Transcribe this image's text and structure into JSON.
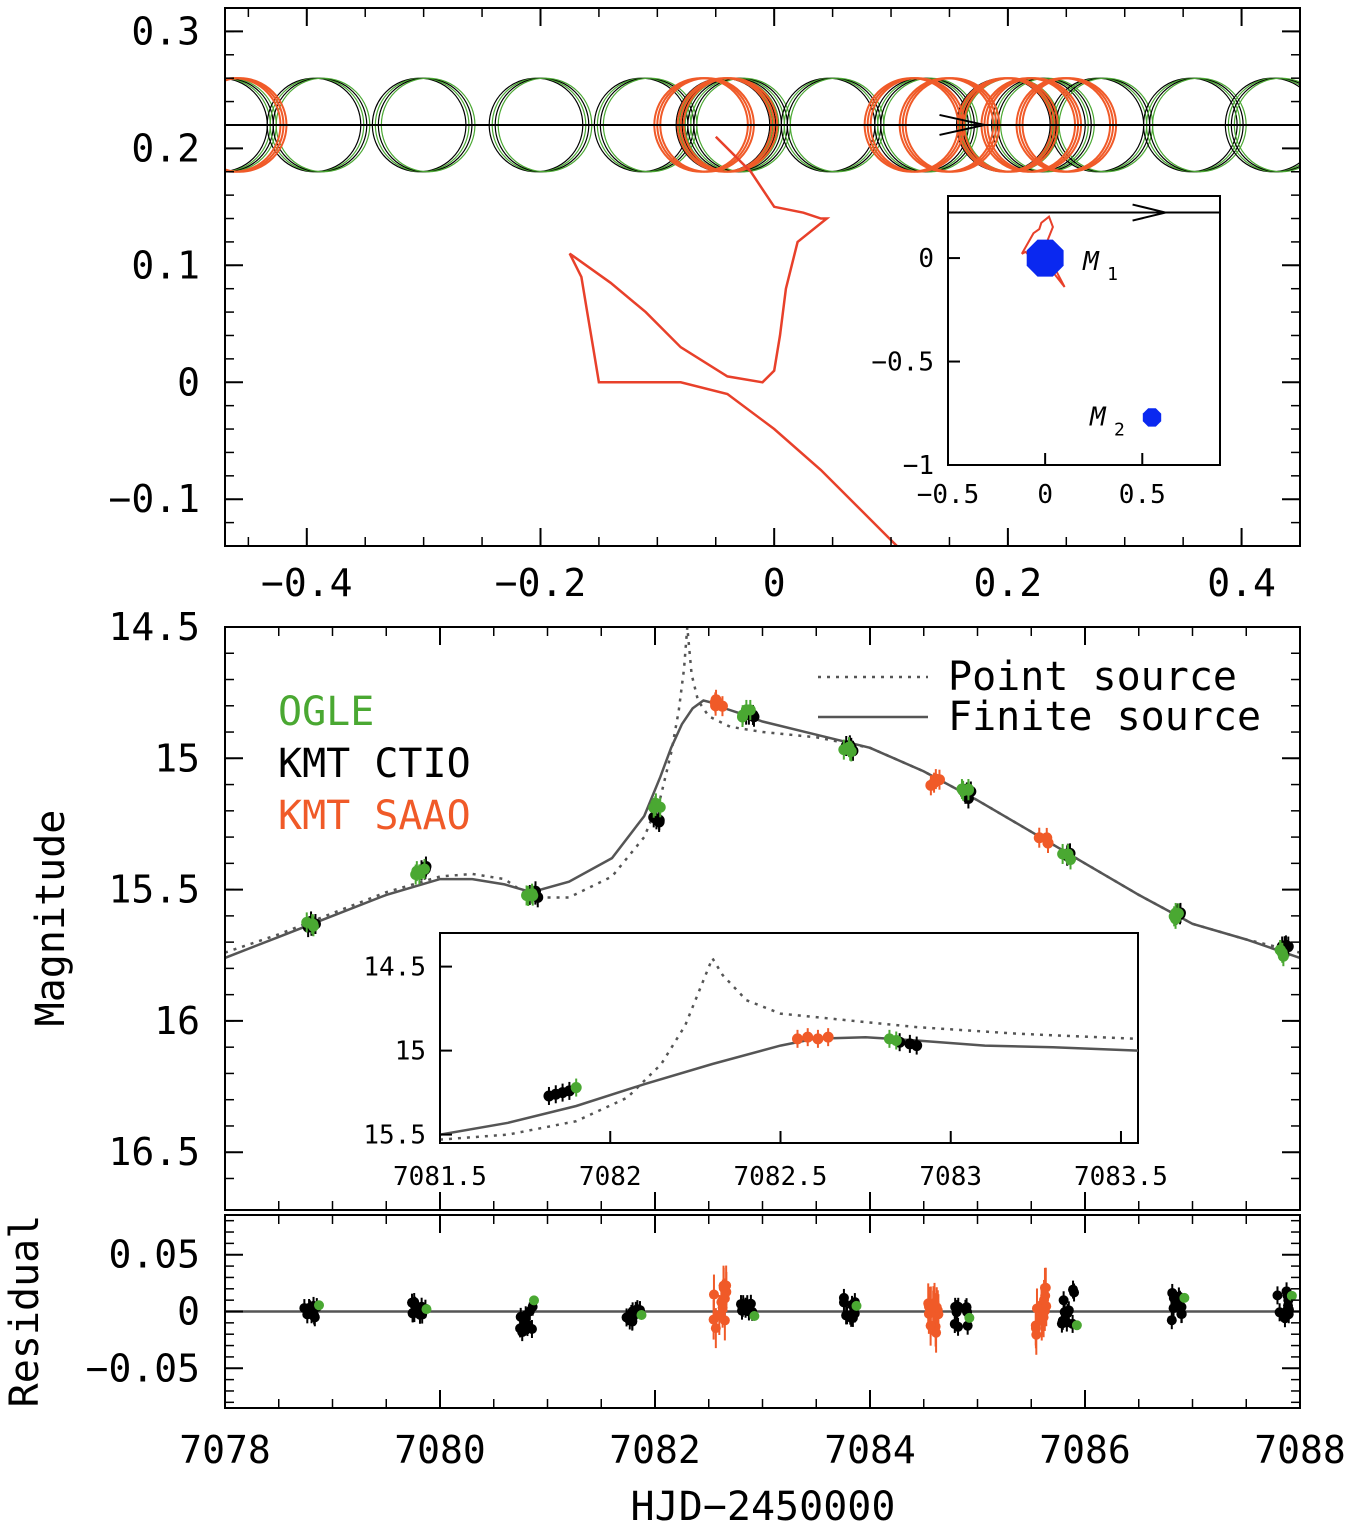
{
  "chart_data": [
    {
      "type": "scatter",
      "panel": "source trajectory / caustic",
      "xlim": [
        -0.47,
        0.45
      ],
      "ylim": [
        -0.14,
        0.32
      ],
      "xticks": [
        -0.4,
        -0.2,
        0,
        0.2,
        0.4
      ],
      "xtick_labels": [
        "−0.4",
        "−0.2",
        "0",
        "0.2",
        "0.4"
      ],
      "yticks": [
        -0.1,
        0,
        0.1,
        0.2,
        0.3
      ],
      "ytick_labels": [
        "−0.1",
        "0",
        "0.1",
        "0.2",
        "0.3"
      ],
      "trajectory_y": 0.22,
      "source_radius": 0.04,
      "source_positions": {
        "green_black": [
          -0.47,
          -0.39,
          -0.3,
          -0.2,
          -0.11,
          -0.04,
          -0.03,
          0.05,
          0.13,
          0.2,
          0.23,
          0.28,
          0.36,
          0.43
        ],
        "orange": [
          -0.46,
          -0.06,
          -0.04,
          0.12,
          0.15,
          0.2,
          0.22,
          0.25
        ]
      },
      "colors": {
        "caustic": "#e8402a",
        "source_orange": "#f05a28",
        "source_green": "#4aa832",
        "source_black": "#000000"
      },
      "inset": {
        "xlim": [
          -0.5,
          0.9
        ],
        "ylim": [
          -1.0,
          0.3
        ],
        "xticks": [
          -0.5,
          0,
          0.5
        ],
        "xtick_labels": [
          "−0.5",
          "0",
          "0.5"
        ],
        "yticks": [
          -1,
          -0.5,
          0
        ],
        "ytick_labels": [
          "−1",
          "−0.5",
          "0"
        ],
        "trajectory_y": 0.22,
        "masses": [
          {
            "label": "M",
            "sub": "1",
            "x": 0.0,
            "y": 0.0,
            "size": "large"
          },
          {
            "label": "M",
            "sub": "2",
            "x": 0.55,
            "y": -0.77,
            "size": "small"
          }
        ],
        "mass_color": "#0a28f0"
      }
    },
    {
      "type": "line",
      "panel": "light curve",
      "xlim": [
        7078,
        7088
      ],
      "ylim": [
        16.72,
        14.5
      ],
      "xlabel": "",
      "ylabel": "Magnitude",
      "yticks": [
        14.5,
        15,
        15.5,
        16,
        16.5
      ],
      "ytick_labels": [
        "14.5",
        "15",
        "15.5",
        "16",
        "16.5"
      ],
      "series": [
        {
          "name": "Point source",
          "style": "dotted",
          "color": "#555555",
          "x": [
            7078.0,
            7078.5,
            7079.0,
            7079.5,
            7080.0,
            7080.3,
            7080.6,
            7080.85,
            7081.2,
            7081.6,
            7081.9,
            7082.05,
            7082.15,
            7082.22,
            7082.27,
            7082.3,
            7082.34,
            7082.4,
            7082.5,
            7082.7,
            7083.0,
            7083.5,
            7084.0,
            7084.5,
            7085.0,
            7085.5,
            7086.0,
            7086.5,
            7087.0,
            7087.5,
            7088.0
          ],
          "y": [
            15.74,
            15.67,
            15.59,
            15.51,
            15.45,
            15.44,
            15.46,
            15.53,
            15.53,
            15.45,
            15.3,
            15.15,
            14.98,
            14.82,
            14.66,
            14.5,
            14.68,
            14.78,
            14.84,
            14.88,
            14.9,
            14.92,
            14.96,
            15.05,
            15.16,
            15.28,
            15.4,
            15.52,
            15.63,
            15.69,
            15.74
          ]
        },
        {
          "name": "Finite source",
          "style": "solid",
          "color": "#555555",
          "x": [
            7078.0,
            7078.5,
            7079.0,
            7079.5,
            7080.0,
            7080.3,
            7080.6,
            7080.85,
            7081.2,
            7081.6,
            7081.9,
            7082.05,
            7082.15,
            7082.25,
            7082.35,
            7082.45,
            7082.55,
            7082.65,
            7082.8,
            7083.0,
            7083.5,
            7084.0,
            7084.5,
            7085.0,
            7085.5,
            7086.0,
            7086.5,
            7087.0,
            7087.5,
            7088.0
          ],
          "y": [
            15.76,
            15.68,
            15.6,
            15.52,
            15.46,
            15.46,
            15.48,
            15.51,
            15.47,
            15.38,
            15.22,
            15.07,
            14.96,
            14.87,
            14.81,
            14.78,
            14.79,
            14.81,
            14.83,
            14.86,
            14.91,
            14.96,
            15.05,
            15.16,
            15.28,
            15.4,
            15.52,
            15.63,
            15.69,
            15.76
          ]
        }
      ],
      "data": {
        "OGLE": {
          "color": "#4aa832",
          "x": [
            7078.8,
            7079.82,
            7080.85,
            7082.03,
            7082.85,
            7083.78,
            7084.88,
            7085.82,
            7086.83,
            7087.82
          ],
          "y": [
            15.64,
            15.43,
            15.51,
            15.18,
            14.83,
            14.96,
            15.12,
            15.37,
            15.6,
            15.74
          ]
        },
        "KMT CTIO": {
          "color": "#000000",
          "x": [
            7078.82,
            7079.84,
            7080.87,
            7082.0,
            7082.88,
            7083.82,
            7084.9,
            7085.85,
            7086.85,
            7087.85
          ],
          "y": [
            15.63,
            15.42,
            15.52,
            15.23,
            14.84,
            14.96,
            15.14,
            15.37,
            15.59,
            15.72
          ]
        },
        "KMT SAAO": {
          "color": "#f05a28",
          "x": [
            7082.6,
            7084.6,
            7085.62
          ],
          "y": [
            14.79,
            15.09,
            15.31
          ]
        }
      },
      "legend_labels": [
        "OGLE",
        "KMT CTIO",
        "KMT SAAO"
      ],
      "legend_colors": [
        "#4aa832",
        "#000000",
        "#f05a28"
      ],
      "inset": {
        "xlim": [
          7081.5,
          7083.55
        ],
        "ylim": [
          15.55,
          14.3
        ],
        "xticks": [
          7081.5,
          7082,
          7082.5,
          7083,
          7083.5
        ],
        "xtick_labels": [
          "7081.5",
          "7082",
          "7082.5",
          "7083",
          "7083.5"
        ],
        "yticks": [
          14.5,
          15,
          15.5
        ],
        "ytick_labels": [
          "14.5",
          "15",
          "15.5"
        ]
      }
    },
    {
      "type": "scatter",
      "panel": "residual",
      "xlim": [
        7078,
        7088
      ],
      "ylim": [
        -0.085,
        0.085
      ],
      "xlabel": "HJD−2450000",
      "ylabel": "Residual",
      "xticks": [
        7078,
        7080,
        7082,
        7084,
        7086,
        7088
      ],
      "xtick_labels": [
        "7078",
        "7080",
        "7082",
        "7084",
        "7086",
        "7088"
      ],
      "yticks": [
        -0.05,
        0,
        0.05
      ],
      "ytick_labels": [
        "−0.05",
        "0",
        "0.05"
      ],
      "groups": [
        {
          "x": 7078.8,
          "color": "#000000",
          "center": 0.0,
          "spread": 0.012
        },
        {
          "x": 7079.8,
          "color": "#000000",
          "center": 0.003,
          "spread": 0.012
        },
        {
          "x": 7080.8,
          "color": "#000000",
          "center": -0.005,
          "spread": 0.03
        },
        {
          "x": 7081.8,
          "color": "#000000",
          "center": -0.003,
          "spread": 0.012
        },
        {
          "x": 7082.6,
          "color": "#f05a28",
          "center": 0.0,
          "spread": 0.05
        },
        {
          "x": 7082.85,
          "color": "#000000",
          "center": 0.002,
          "spread": 0.012
        },
        {
          "x": 7083.8,
          "color": "#000000",
          "center": 0.004,
          "spread": 0.02
        },
        {
          "x": 7084.6,
          "color": "#f05a28",
          "center": -0.005,
          "spread": 0.03
        },
        {
          "x": 7084.85,
          "color": "#000000",
          "center": -0.005,
          "spread": 0.02
        },
        {
          "x": 7085.6,
          "color": "#f05a28",
          "center": 0.0,
          "spread": 0.045
        },
        {
          "x": 7085.85,
          "color": "#000000",
          "center": 0.005,
          "spread": 0.035
        },
        {
          "x": 7086.85,
          "color": "#000000",
          "center": 0.004,
          "spread": 0.025
        },
        {
          "x": 7087.85,
          "color": "#000000",
          "center": 0.006,
          "spread": 0.025
        }
      ]
    }
  ]
}
